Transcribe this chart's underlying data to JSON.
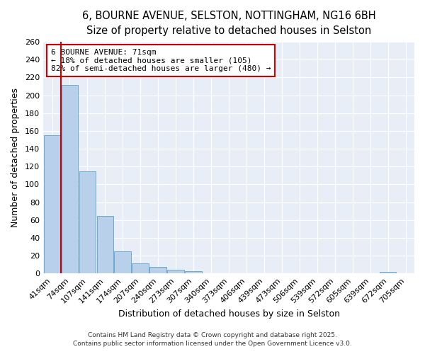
{
  "title_line1": "6, BOURNE AVENUE, SELSTON, NOTTINGHAM, NG16 6BH",
  "title_line2": "Size of property relative to detached houses in Selston",
  "xlabel": "Distribution of detached houses by size in Selston",
  "ylabel": "Number of detached properties",
  "categories": [
    "41sqm",
    "74sqm",
    "107sqm",
    "141sqm",
    "174sqm",
    "207sqm",
    "240sqm",
    "273sqm",
    "307sqm",
    "340sqm",
    "373sqm",
    "406sqm",
    "439sqm",
    "473sqm",
    "506sqm",
    "539sqm",
    "572sqm",
    "605sqm",
    "639sqm",
    "672sqm",
    "705sqm"
  ],
  "values": [
    155,
    212,
    115,
    65,
    25,
    11,
    7,
    4,
    3,
    0,
    0,
    0,
    0,
    0,
    0,
    0,
    0,
    0,
    0,
    2,
    0
  ],
  "bar_color": "#b8d0ea",
  "bar_edgecolor": "#6aaad4",
  "vline_x": 0.5,
  "vline_color": "#cc0000",
  "annotation_text": "6 BOURNE AVENUE: 71sqm\n← 18% of detached houses are smaller (105)\n82% of semi-detached houses are larger (480) →",
  "annotation_box_color": "#cc0000",
  "ylim": [
    0,
    260
  ],
  "yticks": [
    0,
    20,
    40,
    60,
    80,
    100,
    120,
    140,
    160,
    180,
    200,
    220,
    240,
    260
  ],
  "bg_color": "#e8eef8",
  "footer1": "Contains HM Land Registry data © Crown copyright and database right 2025.",
  "footer2": "Contains public sector information licensed under the Open Government Licence v3.0.",
  "title_fontsize": 10.5,
  "subtitle_fontsize": 9.5,
  "axis_label_fontsize": 9,
  "tick_fontsize": 8
}
